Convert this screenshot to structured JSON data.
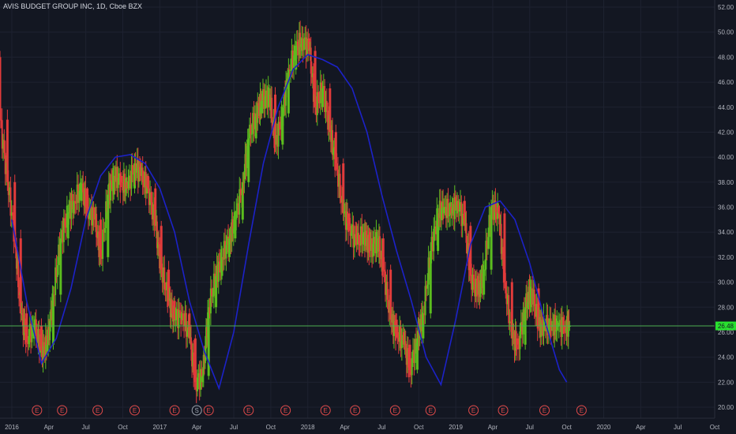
{
  "header": {
    "title": "AVIS BUDGET GROUP INC, 1D, Cboe BZX"
  },
  "chart_data": {
    "type": "line",
    "title": "AVIS BUDGET GROUP INC, 1D, Cboe BZX",
    "ylim": [
      20,
      52
    ],
    "y_ticks": [
      "52.00",
      "50.00",
      "48.00",
      "46.00",
      "44.00",
      "42.00",
      "40.00",
      "38.00",
      "36.00",
      "34.00",
      "32.00",
      "30.00",
      "28.00",
      "26.00",
      "24.00",
      "22.00",
      "20.00"
    ],
    "xlim": [
      2015.92,
      2020.75
    ],
    "x_ticks": [
      {
        "label": "2016",
        "t": 2016.0
      },
      {
        "label": "Apr",
        "t": 2016.25
      },
      {
        "label": "Jul",
        "t": 2016.5
      },
      {
        "label": "Oct",
        "t": 2016.75
      },
      {
        "label": "2017",
        "t": 2017.0
      },
      {
        "label": "Apr",
        "t": 2017.25
      },
      {
        "label": "Jul",
        "t": 2017.5
      },
      {
        "label": "Oct",
        "t": 2017.75
      },
      {
        "label": "2018",
        "t": 2018.0
      },
      {
        "label": "Apr",
        "t": 2018.25
      },
      {
        "label": "Jul",
        "t": 2018.5
      },
      {
        "label": "Oct",
        "t": 2018.75
      },
      {
        "label": "2019",
        "t": 2019.0
      },
      {
        "label": "Apr",
        "t": 2019.25
      },
      {
        "label": "Jul",
        "t": 2019.5
      },
      {
        "label": "Oct",
        "t": 2019.75
      },
      {
        "label": "2020",
        "t": 2020.0
      },
      {
        "label": "Apr",
        "t": 2020.25
      },
      {
        "label": "Jul",
        "t": 2020.5
      },
      {
        "label": "Oct",
        "t": 2020.75
      }
    ],
    "last_price": "26.48",
    "last_value": 26.5,
    "grid": true,
    "colors": {
      "up": "#5bbd1e",
      "down": "#e23b3b",
      "curve": "#1c22c8",
      "price_line": "#4caf50",
      "price_label_bg": "#29e12f",
      "background": "#131722"
    },
    "series": [
      {
        "type": "candlestick",
        "x": [
          2015.92,
          2015.97,
          2016.02,
          2016.06,
          2016.1,
          2016.15,
          2016.2,
          2016.24,
          2016.28,
          2016.33,
          2016.38,
          2016.42,
          2016.47,
          2016.51,
          2016.56,
          2016.6,
          2016.65,
          2016.69,
          2016.74,
          2016.78,
          2016.83,
          2016.87,
          2016.92,
          2016.97,
          2017.01,
          2017.06,
          2017.1,
          2017.15,
          2017.2,
          2017.24,
          2017.29,
          2017.33,
          2017.38,
          2017.42,
          2017.47,
          2017.51,
          2017.56,
          2017.6,
          2017.65,
          2017.69,
          2017.74,
          2017.78,
          2017.83,
          2017.87,
          2017.92,
          2017.96,
          2018.01,
          2018.05,
          2018.1,
          2018.15,
          2018.19,
          2018.24,
          2018.28,
          2018.33,
          2018.38,
          2018.42,
          2018.47,
          2018.51,
          2018.56,
          2018.6,
          2018.65,
          2018.69,
          2018.74,
          2018.78,
          2018.83,
          2018.88,
          2018.92,
          2018.97,
          2019.01,
          2019.06,
          2019.1,
          2019.15,
          2019.19,
          2019.24,
          2019.29,
          2019.33,
          2019.38,
          2019.42,
          2019.47,
          2019.51,
          2019.56,
          2019.6,
          2019.65,
          2019.69,
          2019.74,
          2019.77
        ],
        "open": [
          48.0,
          43.0,
          38.0,
          33.5,
          27.5,
          25.5,
          26.5,
          24.5,
          25.0,
          29.0,
          33.5,
          35.5,
          36.5,
          37.5,
          36.0,
          35.0,
          32.0,
          37.0,
          38.5,
          38.0,
          37.5,
          39.5,
          38.5,
          37.5,
          34.5,
          31.0,
          28.5,
          27.0,
          27.5,
          25.5,
          22.0,
          22.5,
          28.0,
          30.5,
          32.0,
          33.5,
          35.0,
          38.0,
          41.5,
          43.5,
          44.5,
          45.0,
          41.0,
          43.5,
          47.0,
          48.5,
          49.5,
          48.5,
          44.0,
          45.5,
          42.0,
          39.5,
          35.5,
          34.5,
          33.0,
          34.0,
          32.5,
          33.5,
          31.0,
          27.0,
          26.0,
          25.0,
          23.0,
          25.5,
          27.5,
          32.5,
          35.5,
          36.0,
          35.5,
          36.5,
          34.5,
          30.5,
          29.0,
          31.0,
          36.0,
          35.5,
          30.0,
          25.5,
          25.0,
          28.0,
          29.5,
          26.5,
          26.5,
          26.5,
          26.5,
          26.5
        ],
        "close": [
          43.0,
          38.0,
          33.5,
          27.5,
          25.5,
          26.5,
          24.5,
          25.0,
          29.0,
          33.5,
          35.5,
          36.5,
          37.5,
          36.0,
          35.0,
          32.0,
          37.0,
          38.5,
          38.0,
          37.5,
          39.5,
          38.5,
          37.5,
          34.5,
          31.0,
          28.5,
          27.0,
          27.5,
          25.5,
          22.0,
          22.5,
          28.0,
          30.5,
          32.0,
          33.5,
          35.0,
          38.0,
          41.5,
          43.5,
          44.5,
          45.0,
          41.0,
          43.5,
          47.0,
          48.5,
          49.5,
          48.5,
          44.0,
          45.5,
          42.0,
          39.5,
          35.5,
          34.5,
          33.0,
          34.0,
          32.5,
          33.5,
          31.0,
          27.0,
          26.0,
          25.0,
          23.0,
          25.5,
          27.5,
          32.5,
          35.5,
          36.0,
          35.5,
          36.5,
          34.5,
          30.5,
          29.0,
          31.0,
          36.0,
          35.5,
          30.0,
          25.5,
          25.0,
          28.0,
          29.5,
          26.5,
          26.5,
          26.5,
          26.5,
          26.5,
          26.5
        ],
        "high": [
          48.5,
          43.8,
          38.6,
          34.2,
          28.4,
          27.3,
          27.1,
          26.2,
          29.7,
          34.3,
          36.2,
          37.4,
          38.3,
          37.6,
          35.8,
          35.6,
          37.8,
          39.3,
          38.8,
          38.4,
          40.3,
          39.9,
          38.7,
          37.9,
          34.9,
          31.7,
          28.9,
          28.2,
          27.9,
          25.8,
          23.2,
          28.7,
          31.3,
          32.9,
          34.3,
          35.7,
          38.8,
          42.3,
          44.4,
          45.3,
          45.8,
          45.6,
          44.2,
          47.9,
          49.3,
          50.5,
          49.9,
          48.9,
          46.1,
          45.9,
          42.6,
          39.9,
          35.9,
          34.8,
          34.7,
          34.3,
          34.2,
          33.9,
          31.4,
          27.5,
          26.4,
          25.4,
          26.1,
          28.1,
          33.2,
          36.2,
          36.7,
          36.4,
          37.2,
          36.9,
          34.8,
          30.8,
          31.7,
          36.6,
          36.3,
          35.9,
          30.3,
          25.9,
          28.8,
          30.2,
          29.9,
          26.9,
          26.9,
          26.9,
          26.9,
          26.9
        ],
        "low": [
          42.3,
          37.3,
          32.8,
          26.8,
          24.8,
          24.9,
          24.0,
          24.2,
          24.6,
          28.4,
          32.9,
          35.1,
          36.0,
          35.4,
          34.4,
          31.4,
          31.6,
          36.6,
          37.6,
          37.1,
          37.1,
          38.1,
          37.1,
          34.1,
          30.4,
          28.1,
          26.5,
          26.6,
          25.1,
          21.4,
          21.6,
          22.2,
          27.5,
          30.2,
          31.6,
          33.2,
          34.7,
          37.6,
          41.1,
          43.1,
          44.0,
          40.4,
          40.6,
          43.2,
          46.6,
          48.1,
          48.2,
          43.4,
          43.6,
          41.4,
          38.9,
          34.9,
          34.1,
          32.4,
          32.5,
          32.0,
          32.0,
          30.4,
          26.4,
          25.5,
          24.6,
          22.4,
          22.7,
          25.1,
          27.1,
          32.2,
          35.1,
          35.1,
          35.2,
          34.1,
          29.9,
          28.4,
          28.6,
          30.6,
          35.1,
          29.5,
          24.9,
          24.6,
          24.6,
          27.6,
          26.1,
          26.1,
          26.1,
          26.1,
          26.1,
          26.1
        ]
      },
      {
        "type": "line",
        "x": [
          2016.0,
          2016.1,
          2016.2,
          2016.3,
          2016.4,
          2016.5,
          2016.6,
          2016.7,
          2016.8,
          2016.9,
          2017.0,
          2017.1,
          2017.2,
          2017.3,
          2017.4,
          2017.5,
          2017.6,
          2017.7,
          2017.8,
          2017.9,
          2018.0,
          2018.1,
          2018.2,
          2018.3,
          2018.4,
          2018.5,
          2018.6,
          2018.7,
          2018.8,
          2018.9,
          2019.0,
          2019.1,
          2019.2,
          2019.3,
          2019.4,
          2019.5,
          2019.6,
          2019.7,
          2019.75
        ],
        "y": [
          35.0,
          28.5,
          23.5,
          25.5,
          29.5,
          35.0,
          38.5,
          40.0,
          40.2,
          39.5,
          37.5,
          34.0,
          28.5,
          24.5,
          21.5,
          26.0,
          33.0,
          39.5,
          44.0,
          47.0,
          48.2,
          47.8,
          47.2,
          45.5,
          42.0,
          37.0,
          32.5,
          28.5,
          24.0,
          21.8,
          27.0,
          33.0,
          36.0,
          36.5,
          35.0,
          31.5,
          27.0,
          23.0,
          22.0
        ]
      }
    ],
    "events": [
      {
        "t": 2016.17,
        "label": "E"
      },
      {
        "t": 2016.34,
        "label": "E"
      },
      {
        "t": 2016.58,
        "label": "E"
      },
      {
        "t": 2016.83,
        "label": "E"
      },
      {
        "t": 2017.1,
        "label": "E"
      },
      {
        "t": 2017.25,
        "label": "S"
      },
      {
        "t": 2017.33,
        "label": "E"
      },
      {
        "t": 2017.6,
        "label": "E"
      },
      {
        "t": 2017.85,
        "label": "E"
      },
      {
        "t": 2018.12,
        "label": "E"
      },
      {
        "t": 2018.32,
        "label": "E"
      },
      {
        "t": 2018.59,
        "label": "E"
      },
      {
        "t": 2018.83,
        "label": "E"
      },
      {
        "t": 2019.12,
        "label": "E"
      },
      {
        "t": 2019.32,
        "label": "E"
      },
      {
        "t": 2019.6,
        "label": "E"
      },
      {
        "t": 2019.85,
        "label": "E"
      }
    ]
  }
}
